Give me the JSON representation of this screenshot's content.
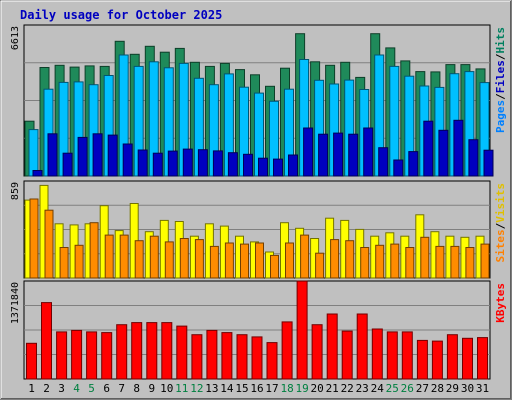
{
  "chart_data": {
    "type": "bar",
    "title": "Daily usage for October 2025",
    "categories": [
      "1",
      "2",
      "3",
      "4",
      "5",
      "6",
      "7",
      "8",
      "9",
      "10",
      "11",
      "12",
      "13",
      "14",
      "15",
      "16",
      "17",
      "18",
      "19",
      "20",
      "21",
      "22",
      "23",
      "24",
      "25",
      "26",
      "27",
      "28",
      "29",
      "30",
      "31"
    ],
    "weekend_days": [
      "4",
      "5",
      "11",
      "12",
      "18",
      "19",
      "25",
      "26"
    ],
    "panels": [
      {
        "name": "hits-files-pages",
        "ymax": 6613,
        "ymax_label": "6613",
        "side_label": [
          "Pages",
          "/",
          "Files",
          "/",
          "Hits"
        ],
        "side_colors": [
          "#0080ff",
          "#000000",
          "#0000c0",
          "#000000",
          "#008060"
        ],
        "series": [
          {
            "name": "Hits",
            "color": "#1f8a5a",
            "values": [
              2400,
              4750,
              4850,
              4770,
              4820,
              4800,
              5900,
              5330,
              5680,
              5420,
              5590,
              4980,
              4800,
              4930,
              4660,
              4430,
              3930,
              4720,
              6230,
              5000,
              4850,
              4980,
              4320,
              6230,
              5610,
              5040,
              4570,
              4560,
              4880,
              4880,
              4690
            ]
          },
          {
            "name": "Files",
            "color": "#00c0ff",
            "values": [
              2030,
              3800,
              4100,
              4120,
              4000,
              4400,
              5300,
              4800,
              5000,
              4740,
              4930,
              4280,
              4000,
              4470,
              3890,
              3630,
              3270,
              3800,
              5100,
              4190,
              4030,
              4200,
              3790,
              5300,
              4800,
              4370,
              3940,
              3880,
              4480,
              4570,
              4090
            ]
          },
          {
            "name": "Pages",
            "color": "#0000c0",
            "values": [
              240,
              1850,
              1000,
              1690,
              1850,
              1790,
              1400,
              1140,
              1000,
              1090,
              1180,
              1150,
              1100,
              1020,
              950,
              780,
              740,
              920,
              2100,
              1830,
              1880,
              1830,
              2100,
              1240,
              700,
              1070,
              2400,
              2000,
              2440,
              1590,
              1130
            ]
          }
        ]
      },
      {
        "name": "visits-sites",
        "ymax": 859,
        "ymax_label": "859",
        "side_label": [
          "Sites",
          "/",
          "Visits"
        ],
        "side_colors": [
          "#ff8000",
          "#000000",
          "#e0c000"
        ],
        "series": [
          {
            "name": "Visits",
            "color": "#ffff00",
            "values": [
              690,
              820,
              480,
              470,
              480,
              640,
              420,
              660,
              410,
              510,
              500,
              370,
              480,
              460,
              370,
              320,
              230,
              490,
              440,
              350,
              530,
              510,
              430,
              370,
              400,
              370,
              560,
              410,
              370,
              360,
              370
            ]
          },
          {
            "name": "Sites",
            "color": "#ff8c00",
            "values": [
              700,
              600,
              270,
              290,
              490,
              380,
              380,
              330,
              370,
              320,
              350,
              340,
              280,
              310,
              300,
              310,
              200,
              310,
              380,
              220,
              340,
              330,
              270,
              290,
              300,
              270,
              360,
              280,
              280,
              270,
              300
            ]
          }
        ]
      },
      {
        "name": "kbytes",
        "ymax": 1371840,
        "ymax_label": "1371840",
        "side_label": [
          "KBytes"
        ],
        "side_colors": [
          "#ff0000"
        ],
        "series": [
          {
            "name": "KBytes",
            "color": "#ff0000",
            "values": [
              500000,
              1070000,
              660000,
              680000,
              660000,
              650000,
              760000,
              790000,
              790000,
              790000,
              740000,
              620000,
              680000,
              650000,
              620000,
              590000,
              510000,
              800000,
              1370000,
              760000,
              910000,
              670000,
              910000,
              700000,
              660000,
              660000,
              540000,
              530000,
              620000,
              570000,
              580000
            ]
          }
        ]
      }
    ]
  }
}
